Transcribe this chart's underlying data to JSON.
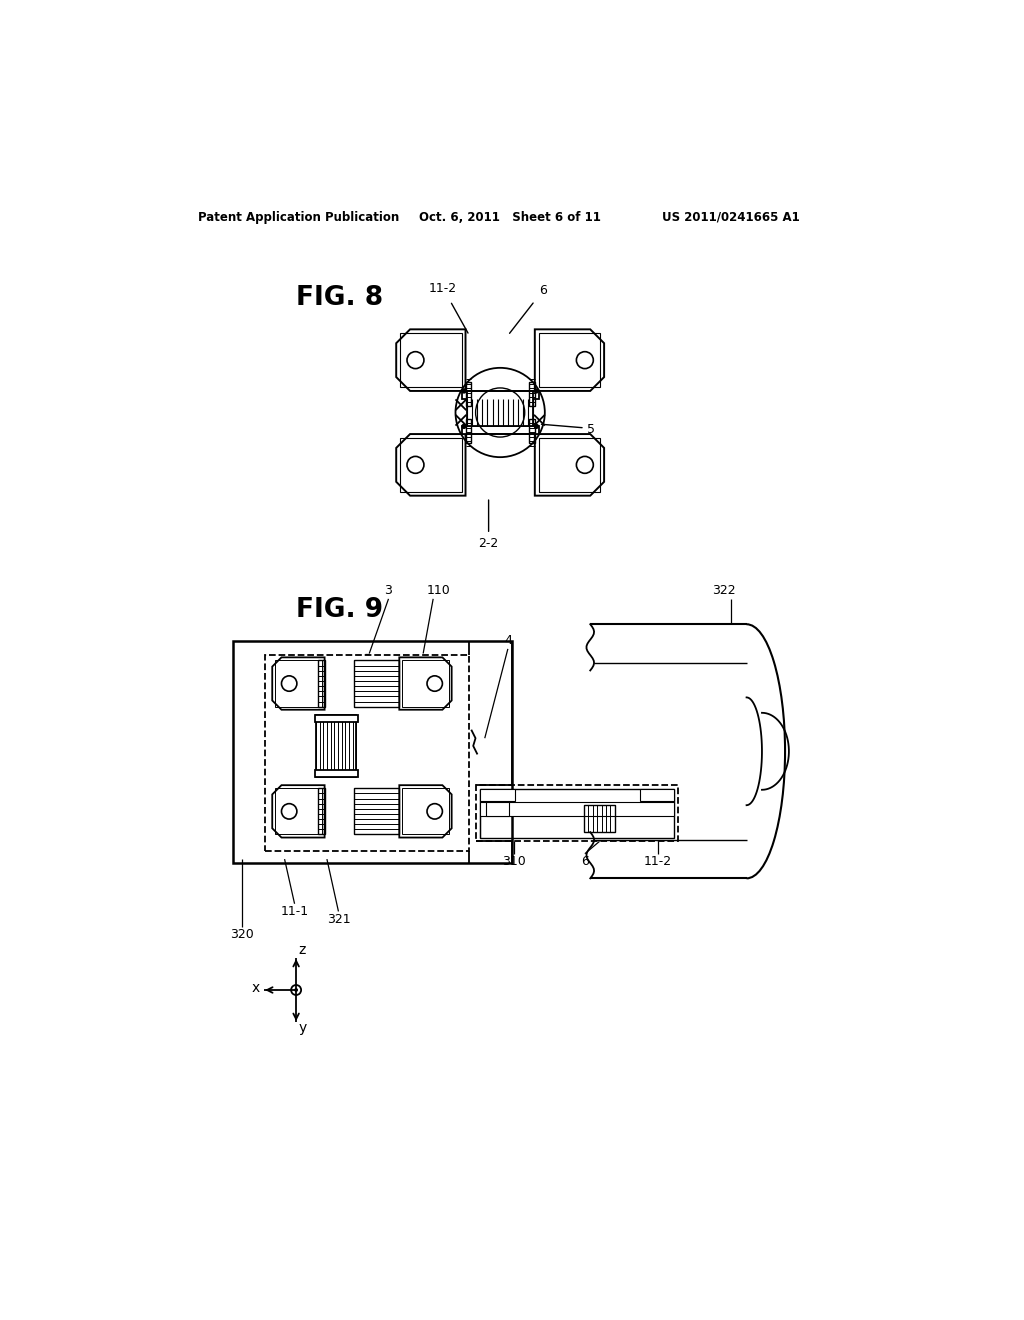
{
  "background_color": "#ffffff",
  "header_left": "Patent Application Publication",
  "header_mid": "Oct. 6, 2011   Sheet 6 of 11",
  "header_right": "US 2011/0241665 A1",
  "fig8_label": "FIG. 8",
  "fig9_label": "FIG. 9",
  "line_color": "#000000",
  "line_width": 1.5
}
